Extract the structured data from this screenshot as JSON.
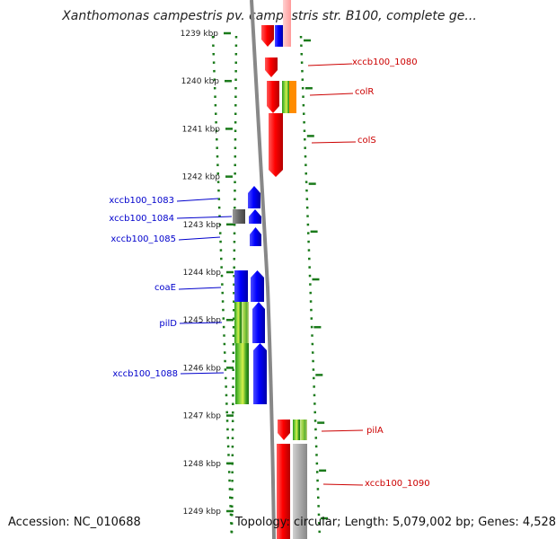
{
  "title": "Xanthomonas campestris pv. campestris str. B100, complete ge...",
  "footer": {
    "accession": "Accession: NC_010688",
    "topology": "Topology: circular; Length: 5,079,002 bp; Genes: 4,528"
  },
  "colors": {
    "minus_strand_label": "#0000cc",
    "plus_strand_label": "#cc0000",
    "tick": "#1a7a1a",
    "backbone": "#888888"
  },
  "ticks": [
    {
      "label": "1239 kbp",
      "kbp": 1239
    },
    {
      "label": "1240 kbp",
      "kbp": 1240
    },
    {
      "label": "1241 kbp",
      "kbp": 1241
    },
    {
      "label": "1242 kbp",
      "kbp": 1242
    },
    {
      "label": "1243 kbp",
      "kbp": 1243
    },
    {
      "label": "1244 kbp",
      "kbp": 1244
    },
    {
      "label": "1245 kbp",
      "kbp": 1245
    },
    {
      "label": "1246 kbp",
      "kbp": 1246
    },
    {
      "label": "1247 kbp",
      "kbp": 1247
    },
    {
      "label": "1248 kbp",
      "kbp": 1248
    },
    {
      "label": "1249 kbp",
      "kbp": 1249
    }
  ],
  "gene_labels": [
    {
      "name": "xccb100_1080",
      "strand": "+"
    },
    {
      "name": "colR",
      "strand": "+"
    },
    {
      "name": "colS",
      "strand": "+"
    },
    {
      "name": "xccb100_1083",
      "strand": "-"
    },
    {
      "name": "xccb100_1084",
      "strand": "-"
    },
    {
      "name": "xccb100_1085",
      "strand": "-"
    },
    {
      "name": "coaE",
      "strand": "-"
    },
    {
      "name": "pilD",
      "strand": "-"
    },
    {
      "name": "xccb100_1088",
      "strand": "-"
    },
    {
      "name": "pilA",
      "strand": "+"
    },
    {
      "name": "xccb100_1090",
      "strand": "+"
    }
  ]
}
